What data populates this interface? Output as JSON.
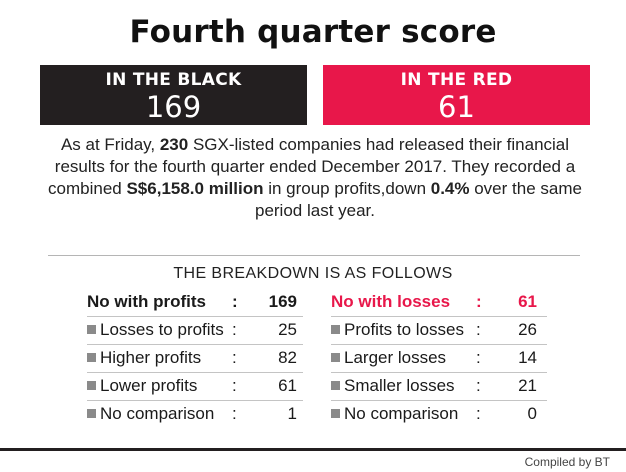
{
  "title": "Fourth quarter score",
  "black_box": {
    "label": "IN THE BLACK",
    "value": "169"
  },
  "red_box": {
    "label": "IN THE RED",
    "value": "61"
  },
  "summary": {
    "p1": "As at Friday, ",
    "count": "230",
    "p2": " SGX-listed companies had released their financial results for the fourth quarter ended December 2017. They recorded a combined ",
    "amount": "S$6,158.0 million",
    "p3": " in group profits,down ",
    "change": "0.4%",
    "p4": " over the same period last year."
  },
  "breakdown_heading": "THE BREAKDOWN IS AS FOLLOWS",
  "profits_column": {
    "header": {
      "label": "No with profits",
      "colon": ":",
      "value": "169"
    },
    "rows": [
      {
        "label": "Losses to profits",
        "colon": ":",
        "value": "25"
      },
      {
        "label": "Higher profits",
        "colon": ":",
        "value": "82"
      },
      {
        "label": "Lower profits",
        "colon": ":",
        "value": "61"
      },
      {
        "label": "No comparison",
        "colon": ":",
        "value": "1"
      }
    ]
  },
  "losses_column": {
    "header": {
      "label": "No with losses",
      "colon": ":",
      "value": "61"
    },
    "rows": [
      {
        "label": "Profits to losses",
        "colon": ":",
        "value": "26"
      },
      {
        "label": "Larger losses",
        "colon": ":",
        "value": "14"
      },
      {
        "label": "Smaller losses",
        "colon": ":",
        "value": "21"
      },
      {
        "label": "No comparison",
        "colon": ":",
        "value": "0"
      }
    ]
  },
  "credit": "Compiled by BT",
  "colors": {
    "black_box": "#231f20",
    "red_box": "#e8174a",
    "bullet": "#8a8a8a"
  },
  "icons": {
    "bullet": "square-bullet-icon"
  }
}
